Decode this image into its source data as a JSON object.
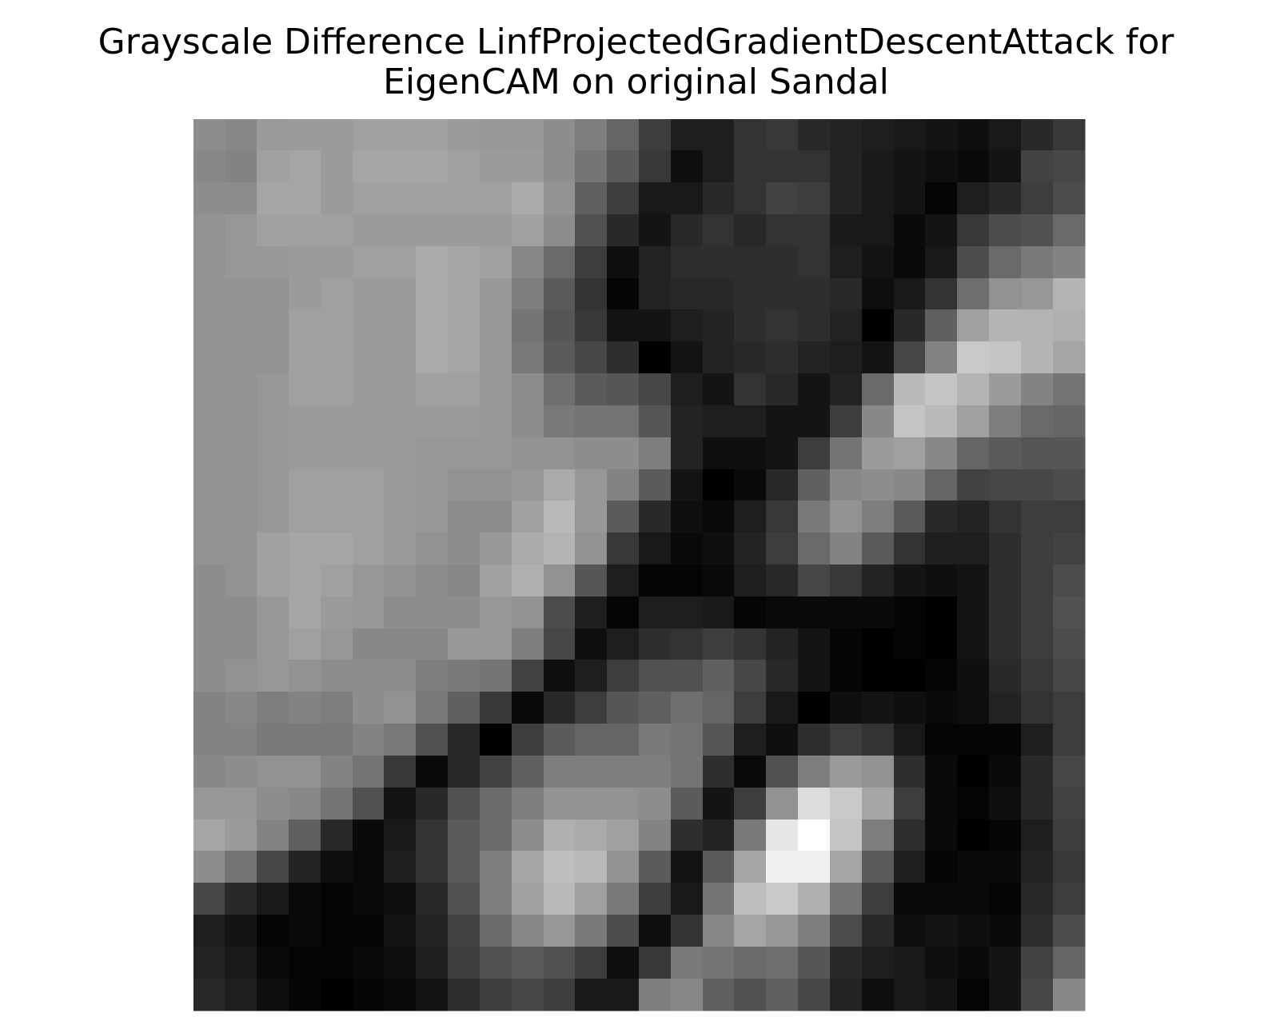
{
  "chart_data": {
    "type": "heatmap",
    "title_lines": [
      "Grayscale Difference LinfProjectedGradientDescentAttack for",
      "EigenCAM on original Sandal"
    ],
    "xlabel": "",
    "ylabel": "",
    "colormap": "gray",
    "axes_visible": false,
    "grid": false,
    "rows": 28,
    "cols": 28,
    "values": [
      [
        141,
        136,
        153,
        155,
        155,
        160,
        160,
        160,
        155,
        151,
        151,
        141,
        126,
        101,
        61,
        30,
        30,
        51,
        56,
        41,
        35,
        30,
        25,
        20,
        15,
        25,
        41,
        56
      ],
      [
        136,
        131,
        160,
        165,
        155,
        165,
        165,
        165,
        160,
        155,
        155,
        141,
        116,
        91,
        56,
        15,
        30,
        51,
        51,
        51,
        35,
        25,
        20,
        15,
        10,
        20,
        66,
        71
      ],
      [
        141,
        141,
        165,
        165,
        155,
        160,
        160,
        160,
        160,
        160,
        170,
        146,
        96,
        61,
        25,
        25,
        41,
        51,
        66,
        61,
        35,
        25,
        20,
        5,
        30,
        41,
        61,
        76
      ],
      [
        146,
        151,
        160,
        160,
        160,
        155,
        155,
        155,
        155,
        155,
        160,
        141,
        81,
        41,
        20,
        41,
        51,
        41,
        51,
        51,
        25,
        25,
        10,
        20,
        56,
        76,
        81,
        106
      ],
      [
        146,
        151,
        151,
        155,
        155,
        160,
        160,
        170,
        165,
        160,
        136,
        106,
        61,
        15,
        35,
        46,
        46,
        46,
        46,
        51,
        30,
        20,
        10,
        25,
        76,
        106,
        121,
        131
      ],
      [
        146,
        146,
        146,
        155,
        160,
        155,
        155,
        170,
        165,
        151,
        126,
        91,
        51,
        5,
        35,
        41,
        41,
        46,
        46,
        46,
        41,
        15,
        25,
        51,
        111,
        146,
        151,
        180
      ],
      [
        146,
        146,
        146,
        160,
        160,
        155,
        155,
        170,
        165,
        151,
        116,
        86,
        56,
        20,
        20,
        30,
        35,
        46,
        51,
        46,
        35,
        0,
        41,
        96,
        160,
        180,
        180,
        175
      ],
      [
        146,
        146,
        146,
        160,
        160,
        155,
        155,
        170,
        165,
        151,
        121,
        91,
        71,
        46,
        0,
        20,
        35,
        41,
        46,
        35,
        30,
        20,
        71,
        131,
        201,
        196,
        180,
        165
      ],
      [
        146,
        146,
        151,
        160,
        160,
        155,
        155,
        160,
        160,
        151,
        141,
        111,
        91,
        86,
        71,
        30,
        20,
        51,
        41,
        20,
        35,
        106,
        185,
        196,
        180,
        155,
        131,
        116
      ],
      [
        146,
        146,
        151,
        155,
        155,
        155,
        155,
        155,
        155,
        151,
        141,
        121,
        116,
        116,
        86,
        35,
        30,
        30,
        20,
        20,
        61,
        136,
        196,
        185,
        160,
        126,
        106,
        101
      ],
      [
        146,
        146,
        151,
        155,
        155,
        155,
        155,
        151,
        151,
        151,
        146,
        146,
        141,
        141,
        126,
        35,
        15,
        15,
        20,
        61,
        116,
        155,
        160,
        136,
        101,
        91,
        86,
        86
      ],
      [
        146,
        146,
        151,
        160,
        160,
        160,
        155,
        151,
        146,
        146,
        151,
        170,
        151,
        131,
        91,
        20,
        0,
        10,
        41,
        96,
        136,
        141,
        136,
        101,
        66,
        71,
        71,
        76
      ],
      [
        146,
        146,
        151,
        160,
        160,
        160,
        155,
        151,
        141,
        141,
        160,
        185,
        151,
        91,
        41,
        15,
        10,
        30,
        56,
        121,
        146,
        126,
        91,
        41,
        35,
        51,
        61,
        61
      ],
      [
        146,
        146,
        160,
        165,
        165,
        160,
        155,
        146,
        141,
        151,
        170,
        180,
        146,
        56,
        25,
        10,
        15,
        35,
        61,
        106,
        131,
        91,
        51,
        30,
        30,
        46,
        61,
        66
      ],
      [
        141,
        146,
        160,
        165,
        160,
        151,
        146,
        141,
        136,
        160,
        175,
        146,
        86,
        30,
        5,
        5,
        10,
        30,
        41,
        71,
        56,
        35,
        20,
        15,
        20,
        46,
        61,
        76
      ],
      [
        141,
        141,
        151,
        165,
        155,
        151,
        141,
        141,
        141,
        151,
        146,
        76,
        30,
        5,
        30,
        30,
        25,
        5,
        10,
        10,
        10,
        10,
        5,
        0,
        20,
        46,
        61,
        81
      ],
      [
        141,
        141,
        151,
        160,
        151,
        136,
        136,
        136,
        151,
        151,
        126,
        71,
        15,
        30,
        46,
        51,
        61,
        51,
        35,
        20,
        5,
        0,
        5,
        0,
        20,
        46,
        61,
        76
      ],
      [
        141,
        146,
        151,
        146,
        141,
        141,
        141,
        126,
        121,
        116,
        66,
        15,
        30,
        61,
        81,
        81,
        96,
        71,
        41,
        20,
        5,
        0,
        0,
        5,
        15,
        41,
        56,
        71
      ],
      [
        131,
        136,
        126,
        131,
        126,
        141,
        146,
        121,
        96,
        56,
        10,
        41,
        61,
        86,
        96,
        111,
        101,
        61,
        25,
        0,
        15,
        20,
        15,
        10,
        15,
        35,
        51,
        61
      ],
      [
        131,
        131,
        121,
        121,
        121,
        131,
        121,
        81,
        41,
        0,
        61,
        91,
        101,
        101,
        121,
        116,
        86,
        30,
        15,
        46,
        61,
        51,
        25,
        5,
        5,
        5,
        30,
        61
      ],
      [
        136,
        141,
        146,
        146,
        131,
        116,
        56,
        10,
        41,
        66,
        96,
        126,
        126,
        126,
        126,
        116,
        46,
        10,
        81,
        126,
        155,
        146,
        46,
        10,
        0,
        10,
        41,
        71
      ],
      [
        151,
        151,
        141,
        136,
        116,
        81,
        20,
        41,
        81,
        106,
        126,
        146,
        146,
        146,
        141,
        91,
        20,
        61,
        146,
        220,
        201,
        165,
        61,
        10,
        5,
        15,
        41,
        66
      ],
      [
        165,
        155,
        131,
        96,
        41,
        10,
        25,
        51,
        91,
        106,
        141,
        175,
        170,
        160,
        131,
        46,
        35,
        121,
        230,
        255,
        196,
        126,
        46,
        10,
        0,
        5,
        30,
        61
      ],
      [
        141,
        116,
        71,
        35,
        15,
        10,
        30,
        51,
        91,
        126,
        165,
        190,
        185,
        146,
        91,
        20,
        91,
        165,
        240,
        240,
        165,
        91,
        30,
        5,
        10,
        10,
        35,
        56
      ],
      [
        71,
        41,
        25,
        10,
        5,
        10,
        15,
        41,
        81,
        126,
        160,
        185,
        160,
        121,
        61,
        25,
        116,
        190,
        201,
        175,
        116,
        61,
        10,
        10,
        10,
        5,
        41,
        61
      ],
      [
        30,
        20,
        5,
        10,
        5,
        5,
        20,
        35,
        66,
        106,
        136,
        151,
        121,
        76,
        15,
        51,
        136,
        165,
        151,
        126,
        76,
        41,
        15,
        20,
        15,
        10,
        46,
        76
      ],
      [
        35,
        25,
        10,
        5,
        5,
        10,
        15,
        30,
        61,
        81,
        91,
        81,
        61,
        15,
        56,
        121,
        116,
        106,
        111,
        86,
        41,
        30,
        25,
        15,
        10,
        20,
        66,
        101
      ],
      [
        41,
        30,
        15,
        5,
        0,
        5,
        10,
        20,
        46,
        61,
        71,
        61,
        25,
        25,
        126,
        136,
        96,
        81,
        96,
        71,
        35,
        15,
        25,
        20,
        5,
        20,
        71,
        136
      ]
    ]
  }
}
